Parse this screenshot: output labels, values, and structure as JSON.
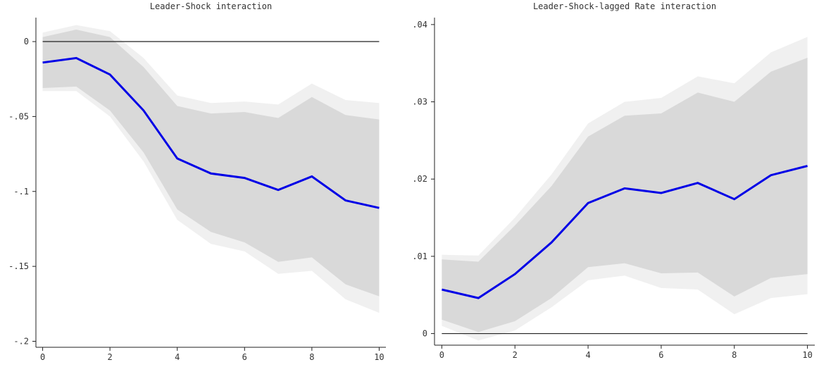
{
  "chart_data": [
    {
      "type": "line",
      "title": "Leader-Shock interaction",
      "x": [
        0,
        1,
        2,
        3,
        4,
        5,
        6,
        7,
        8,
        9,
        10
      ],
      "values": [
        -0.014,
        -0.011,
        -0.022,
        -0.046,
        -0.078,
        -0.088,
        -0.091,
        -0.099,
        -0.09,
        -0.106,
        -0.111
      ],
      "color": "#0000e6",
      "band_inner": {
        "color": "#d9d9d9",
        "upper": [
          0.003,
          0.008,
          0.003,
          -0.017,
          -0.043,
          -0.048,
          -0.047,
          -0.051,
          -0.037,
          -0.049,
          -0.052
        ],
        "lower": [
          -0.031,
          -0.03,
          -0.046,
          -0.074,
          -0.112,
          -0.127,
          -0.134,
          -0.147,
          -0.144,
          -0.162,
          -0.17
        ]
      },
      "band_outer": {
        "color": "#f0f0f0",
        "upper": [
          0.006,
          0.011,
          0.007,
          -0.011,
          -0.036,
          -0.041,
          -0.04,
          -0.042,
          -0.028,
          -0.039,
          -0.041
        ],
        "lower": [
          -0.033,
          -0.033,
          -0.05,
          -0.08,
          -0.119,
          -0.135,
          -0.14,
          -0.155,
          -0.153,
          -0.172,
          -0.181
        ]
      },
      "refline": 0,
      "xlim": [
        -0.2,
        10.2
      ],
      "ylim": [
        -0.204,
        0.016
      ],
      "xticks": [
        0,
        2,
        4,
        6,
        8,
        10
      ],
      "yticks": [
        0,
        {
          "value": -0.05,
          "label": "-.05"
        },
        {
          "value": -0.1,
          "label": "-.1"
        },
        {
          "value": -0.15,
          "label": "-.15"
        },
        {
          "value": -0.2,
          "label": "-.2"
        }
      ]
    },
    {
      "type": "line",
      "title": "Leader-Shock-lagged Rate interaction",
      "x": [
        0,
        1,
        2,
        3,
        4,
        5,
        6,
        7,
        8,
        9,
        10
      ],
      "values": [
        0.0057,
        0.0046,
        0.0077,
        0.0118,
        0.0169,
        0.0188,
        0.0182,
        0.0195,
        0.0174,
        0.0205,
        0.0217
      ],
      "color": "#0000e6",
      "band_inner": {
        "color": "#d9d9d9",
        "upper": [
          0.0096,
          0.0093,
          0.014,
          0.0191,
          0.0255,
          0.0282,
          0.0285,
          0.0312,
          0.03,
          0.0339,
          0.0357
        ],
        "lower": [
          0.0018,
          0.0002,
          0.0016,
          0.0046,
          0.0086,
          0.0091,
          0.0078,
          0.0079,
          0.0048,
          0.0072,
          0.0077
        ]
      },
      "band_outer": {
        "color": "#f0f0f0",
        "upper": [
          0.0102,
          0.0101,
          0.015,
          0.0206,
          0.0272,
          0.03,
          0.0305,
          0.0333,
          0.0324,
          0.0364,
          0.0384
        ],
        "lower": [
          0.001,
          -0.0009,
          0.0004,
          0.0034,
          0.0069,
          0.0075,
          0.0059,
          0.0057,
          0.0025,
          0.0046,
          0.0051
        ]
      },
      "refline": 0,
      "xlim": [
        -0.2,
        10.2
      ],
      "ylim": [
        -0.0015,
        0.0409
      ],
      "xticks": [
        0,
        2,
        4,
        6,
        8,
        10
      ],
      "yticks": [
        0,
        {
          "value": 0.01,
          "label": ".01"
        },
        {
          "value": 0.02,
          "label": ".02"
        },
        {
          "value": 0.03,
          "label": ".03"
        },
        {
          "value": 0.04,
          "label": ".04"
        }
      ]
    }
  ]
}
